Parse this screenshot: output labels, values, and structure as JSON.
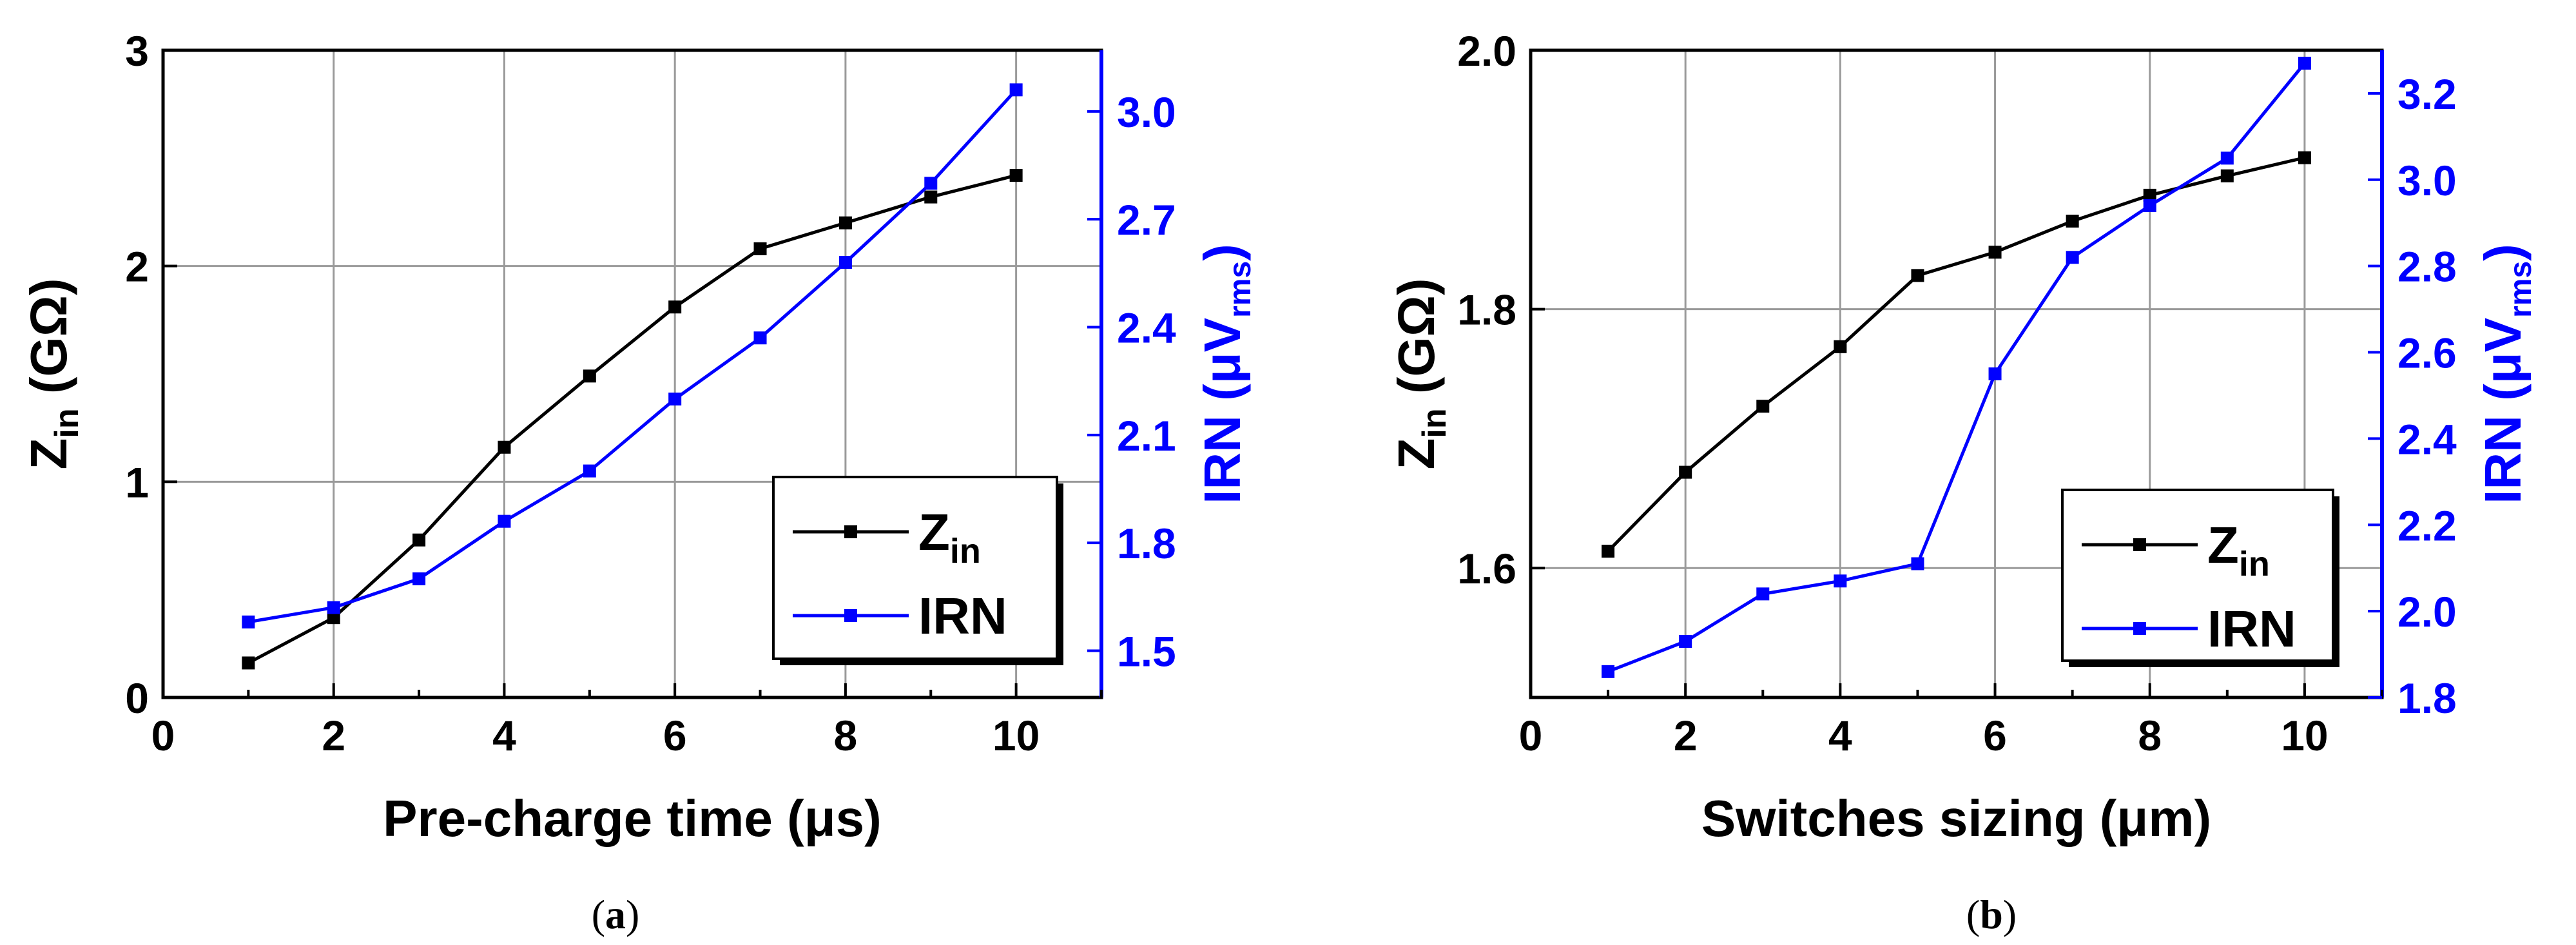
{
  "colors": {
    "zin": "#000000",
    "irn": "#0000ff",
    "grid": "#9a9a9a",
    "axis": "#000000"
  },
  "chart_data": [
    {
      "type": "line",
      "caption": "a",
      "xlabel": "Pre-charge time (μs)",
      "ylabel": {
        "main": "Z",
        "sub": "in",
        "rest": " (GΩ)"
      },
      "y2label": {
        "main": "IRN (μV",
        "sub": "rms",
        "rest": ")"
      },
      "xlim": [
        0,
        11
      ],
      "ylim": [
        0,
        3
      ],
      "y2lim": [
        1.37,
        3.17
      ],
      "xticks": [
        "0",
        "2",
        "4",
        "6",
        "8",
        "10"
      ],
      "yticks": [
        "0",
        "1",
        "2",
        "3"
      ],
      "y2ticks": [
        "1.5",
        "1.8",
        "2.1",
        "2.4",
        "2.7",
        "3.0"
      ],
      "grid": true,
      "legend": {
        "position": "bottom-right",
        "entries": [
          {
            "main": "Z",
            "sub": "in"
          },
          {
            "main": "IRN",
            "sub": ""
          }
        ]
      },
      "x": [
        1,
        2,
        3,
        4,
        5,
        6,
        7,
        8,
        9,
        10
      ],
      "series": [
        {
          "name": "Zin",
          "axis": "left",
          "values": [
            0.16,
            0.37,
            0.73,
            1.16,
            1.49,
            1.81,
            2.08,
            2.2,
            2.32,
            2.42
          ]
        },
        {
          "name": "IRN",
          "axis": "right",
          "values": [
            1.58,
            1.62,
            1.7,
            1.86,
            2.0,
            2.2,
            2.37,
            2.58,
            2.8,
            3.06
          ]
        }
      ]
    },
    {
      "type": "line",
      "caption": "b",
      "xlabel": "Switches sizing (μm)",
      "ylabel": {
        "main": "Z",
        "sub": "in",
        "rest": " (GΩ)"
      },
      "y2label": {
        "main": "IRN (μV",
        "sub": "rms",
        "rest": ")"
      },
      "xlim": [
        0,
        11
      ],
      "ylim": [
        1.5,
        2.0
      ],
      "y2lim": [
        1.8,
        3.3
      ],
      "xticks": [
        "0",
        "2",
        "4",
        "6",
        "8",
        "10"
      ],
      "yticks": [
        "1.6",
        "1.8",
        "2.0"
      ],
      "y2ticks": [
        "1.8",
        "2.0",
        "2.2",
        "2.4",
        "2.6",
        "2.8",
        "3.0",
        "3.2"
      ],
      "grid": true,
      "legend": {
        "position": "bottom-right",
        "entries": [
          {
            "main": "Z",
            "sub": "in"
          },
          {
            "main": "IRN",
            "sub": ""
          }
        ]
      },
      "x": [
        1,
        2,
        3,
        4,
        5,
        6,
        7,
        8,
        9,
        10
      ],
      "series": [
        {
          "name": "Zin",
          "axis": "left",
          "values": [
            1.613,
            1.674,
            1.725,
            1.771,
            1.826,
            1.844,
            1.868,
            1.888,
            1.903,
            1.917
          ]
        },
        {
          "name": "IRN",
          "axis": "right",
          "values": [
            1.86,
            1.93,
            2.04,
            2.07,
            2.11,
            2.55,
            2.82,
            2.94,
            3.05,
            3.27
          ]
        }
      ]
    }
  ]
}
